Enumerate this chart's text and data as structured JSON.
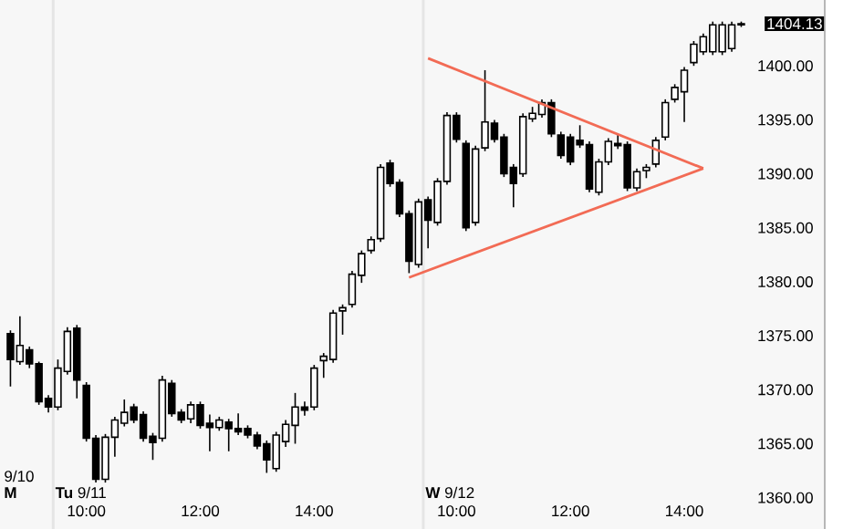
{
  "chart_data": {
    "type": "candlestick",
    "categories": [
      null,
      null,
      null,
      null,
      null,
      null,
      null,
      null,
      "10:00",
      null,
      null,
      null,
      null,
      null,
      null,
      null,
      null,
      null,
      null,
      null,
      "12:00",
      null,
      null,
      null,
      null,
      null,
      null,
      null,
      null,
      null,
      null,
      null,
      "14:00",
      null,
      null,
      null,
      null,
      null,
      null,
      null,
      null,
      null,
      null,
      null,
      null,
      null,
      null,
      "10:00",
      null,
      null,
      null,
      null,
      null,
      null,
      null,
      null,
      null,
      null,
      null,
      "12:00",
      null,
      null,
      null,
      null,
      null,
      null,
      null,
      null,
      null,
      null,
      null,
      "14:00",
      null,
      null,
      null,
      null,
      null,
      null
    ],
    "ohlc": [
      [
        1375.2,
        1375.5,
        1370.3,
        1372.8
      ],
      [
        1372.6,
        1376.8,
        1372.3,
        1374.1
      ],
      [
        1373.7,
        1374.0,
        1372.0,
        1372.4
      ],
      [
        1372.4,
        1372.6,
        1368.6,
        1368.9
      ],
      [
        1369.2,
        1369.5,
        1367.9,
        1368.4
      ],
      [
        1368.4,
        1372.8,
        1368.1,
        1372.0
      ],
      [
        1371.7,
        1375.8,
        1371.4,
        1375.4
      ],
      [
        1375.7,
        1376.0,
        1369.2,
        1370.9
      ],
      [
        1370.4,
        1370.7,
        1365.2,
        1365.5
      ],
      [
        1365.5,
        1365.8,
        1361.4,
        1361.7
      ],
      [
        1361.7,
        1365.9,
        1361.4,
        1365.6
      ],
      [
        1365.6,
        1367.5,
        1363.8,
        1367.2
      ],
      [
        1366.9,
        1369.1,
        1366.6,
        1367.9
      ],
      [
        1368.4,
        1368.7,
        1366.9,
        1367.2
      ],
      [
        1367.7,
        1368.0,
        1365.2,
        1365.5
      ],
      [
        1365.7,
        1366.0,
        1363.5,
        1365.1
      ],
      [
        1365.5,
        1371.3,
        1365.2,
        1370.9
      ],
      [
        1370.6,
        1370.9,
        1367.5,
        1367.8
      ],
      [
        1367.9,
        1368.2,
        1366.9,
        1367.2
      ],
      [
        1367.3,
        1368.9,
        1366.9,
        1368.6
      ],
      [
        1368.6,
        1368.9,
        1366.4,
        1366.7
      ],
      [
        1366.9,
        1367.7,
        1364.3,
        1366.5
      ],
      [
        1366.5,
        1367.5,
        1366.2,
        1367.2
      ],
      [
        1367.0,
        1367.3,
        1364.3,
        1366.4
      ],
      [
        1366.4,
        1367.8,
        1365.8,
        1366.1
      ],
      [
        1366.4,
        1366.7,
        1365.5,
        1365.8
      ],
      [
        1365.8,
        1366.1,
        1364.5,
        1364.8
      ],
      [
        1365.0,
        1365.3,
        1362.3,
        1363.5
      ],
      [
        1362.7,
        1366.1,
        1362.4,
        1365.8
      ],
      [
        1365.2,
        1367.2,
        1364.7,
        1366.8
      ],
      [
        1366.7,
        1369.7,
        1365.0,
        1368.4
      ],
      [
        1368.4,
        1368.9,
        1367.6,
        1368.1
      ],
      [
        1368.4,
        1372.3,
        1368.1,
        1372.0
      ],
      [
        1372.7,
        1373.4,
        1371.1,
        1373.1
      ],
      [
        1372.8,
        1377.4,
        1372.5,
        1377.1
      ],
      [
        1377.3,
        1377.9,
        1375.1,
        1377.6
      ],
      [
        1377.9,
        1381.0,
        1377.6,
        1380.7
      ],
      [
        1380.6,
        1382.9,
        1379.9,
        1382.6
      ],
      [
        1382.9,
        1384.2,
        1382.6,
        1383.9
      ],
      [
        1384.0,
        1390.9,
        1383.7,
        1390.6
      ],
      [
        1391.0,
        1391.3,
        1388.8,
        1389.1
      ],
      [
        1389.2,
        1389.5,
        1386.0,
        1386.3
      ],
      [
        1386.3,
        1386.6,
        1380.8,
        1381.9
      ],
      [
        1381.6,
        1387.7,
        1381.3,
        1387.4
      ],
      [
        1387.6,
        1387.9,
        1383.1,
        1385.7
      ],
      [
        1385.5,
        1389.6,
        1385.2,
        1389.3
      ],
      [
        1389.3,
        1395.7,
        1389.0,
        1395.4
      ],
      [
        1395.4,
        1395.7,
        1392.9,
        1393.2
      ],
      [
        1392.8,
        1393.1,
        1384.7,
        1385.0
      ],
      [
        1385.5,
        1392.6,
        1385.2,
        1392.3
      ],
      [
        1392.4,
        1399.6,
        1392.1,
        1394.8
      ],
      [
        1394.7,
        1395.0,
        1392.9,
        1393.2
      ],
      [
        1393.4,
        1393.7,
        1389.7,
        1390.0
      ],
      [
        1390.6,
        1390.9,
        1386.9,
        1389.1
      ],
      [
        1390.0,
        1395.6,
        1389.7,
        1395.3
      ],
      [
        1395.1,
        1396.2,
        1394.8,
        1395.6
      ],
      [
        1395.5,
        1396.9,
        1395.2,
        1396.6
      ],
      [
        1396.6,
        1396.9,
        1393.4,
        1393.7
      ],
      [
        1393.6,
        1393.9,
        1391.4,
        1391.7
      ],
      [
        1393.4,
        1393.7,
        1390.8,
        1391.1
      ],
      [
        1393.1,
        1394.5,
        1392.4,
        1392.7
      ],
      [
        1392.7,
        1393.0,
        1388.3,
        1388.6
      ],
      [
        1388.3,
        1391.4,
        1388.0,
        1391.1
      ],
      [
        1391.1,
        1393.3,
        1390.8,
        1393.0
      ],
      [
        1392.8,
        1393.7,
        1392.3,
        1392.6
      ],
      [
        1392.7,
        1393.0,
        1388.4,
        1388.7
      ],
      [
        1388.7,
        1390.5,
        1388.4,
        1390.2
      ],
      [
        1390.3,
        1390.9,
        1389.6,
        1390.6
      ],
      [
        1390.9,
        1393.4,
        1390.6,
        1393.1
      ],
      [
        1393.4,
        1396.9,
        1393.1,
        1396.6
      ],
      [
        1396.9,
        1398.3,
        1396.6,
        1398.0
      ],
      [
        1397.6,
        1399.9,
        1394.8,
        1399.6
      ],
      [
        1400.3,
        1402.3,
        1400.0,
        1402.0
      ],
      [
        1401.3,
        1403.0,
        1401.0,
        1402.7
      ],
      [
        1401.3,
        1404.1,
        1401.0,
        1403.8
      ],
      [
        1401.3,
        1404.1,
        1401.0,
        1403.8
      ],
      [
        1401.6,
        1404.1,
        1401.3,
        1403.8
      ],
      [
        1403.8,
        1404.1,
        1403.6,
        1403.9
      ]
    ],
    "series": [
      {
        "type": "line",
        "color": "#f26b55",
        "values": [
          null,
          null,
          null,
          null,
          null,
          null,
          null,
          null,
          null,
          null,
          null,
          null,
          null,
          null,
          null,
          null,
          null,
          null,
          null,
          null,
          null,
          null,
          null,
          null,
          null,
          null,
          null,
          null,
          null,
          null,
          null,
          null,
          null,
          null,
          null,
          null,
          null,
          null,
          null,
          null,
          null,
          null,
          null,
          null,
          1400.7,
          null,
          null,
          null,
          null,
          null,
          null,
          null,
          null,
          null,
          null,
          null,
          null,
          null,
          null,
          null,
          null,
          null,
          null,
          null,
          null,
          null,
          null,
          null,
          null,
          null,
          null,
          null,
          null,
          1390.5,
          null,
          null,
          null,
          null
        ]
      },
      {
        "type": "line",
        "color": "#f26b55",
        "values": [
          null,
          null,
          null,
          null,
          null,
          null,
          null,
          null,
          null,
          null,
          null,
          null,
          null,
          null,
          null,
          null,
          null,
          null,
          null,
          null,
          null,
          null,
          null,
          null,
          null,
          null,
          null,
          null,
          null,
          null,
          null,
          null,
          null,
          null,
          null,
          null,
          null,
          null,
          null,
          null,
          null,
          null,
          1380.4,
          null,
          null,
          null,
          null,
          null,
          null,
          null,
          null,
          null,
          null,
          null,
          null,
          null,
          null,
          null,
          null,
          null,
          null,
          null,
          null,
          null,
          null,
          null,
          null,
          null,
          null,
          null,
          null,
          null,
          null,
          1390.5,
          null,
          null,
          null,
          null
        ]
      }
    ],
    "ylim": [
      1357.1,
      1406.1
    ],
    "yticks": [
      {
        "value": 1360,
        "label": "1360.00"
      },
      {
        "value": 1365,
        "label": "1365.00"
      },
      {
        "value": 1370,
        "label": "1370.00"
      },
      {
        "value": 1375,
        "label": "1375.00"
      },
      {
        "value": 1380,
        "label": "1380.00"
      },
      {
        "value": 1385,
        "label": "1385.00"
      },
      {
        "value": 1390,
        "label": "1390.00"
      },
      {
        "value": 1395,
        "label": "1395.00"
      },
      {
        "value": 1400,
        "label": "1400.00"
      }
    ],
    "annotations": [
      "9/10",
      "M",
      "**Tu** 9/11",
      "**W** 9/12",
      "1404.13"
    ]
  }
}
